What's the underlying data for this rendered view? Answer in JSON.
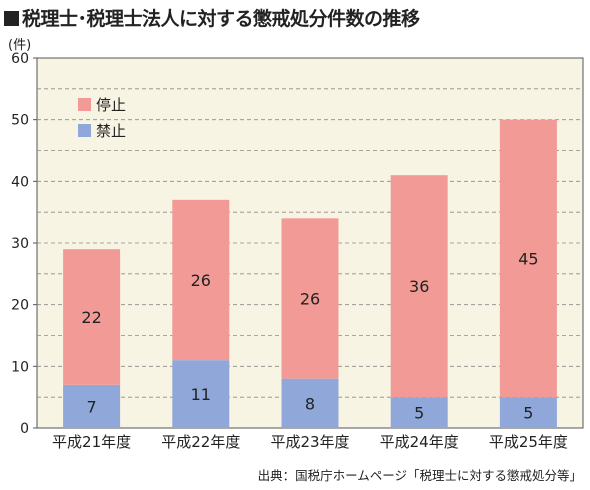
{
  "title": "税理士･税理士法人に対する懲戒処分件数の推移",
  "source": "出典：国税庁ホームページ「税理士に対する懲戒処分等」",
  "chart_data": {
    "type": "bar",
    "stacked": true,
    "categories": [
      "平成21年度",
      "平成22年度",
      "平成23年度",
      "平成24年度",
      "平成25年度"
    ],
    "series": [
      {
        "name": "禁止",
        "color": "#8fa8d9",
        "values": [
          7,
          11,
          8,
          5,
          5
        ]
      },
      {
        "name": "停止",
        "color": "#f29b96",
        "values": [
          22,
          26,
          26,
          36,
          45
        ]
      }
    ],
    "ylabel": "(件)",
    "ylim": [
      0,
      60
    ],
    "yticks": [
      0,
      10,
      20,
      30,
      40,
      50,
      60
    ],
    "grid": true,
    "legend_placement": "top-left",
    "background_color": "#f8f4e3"
  }
}
